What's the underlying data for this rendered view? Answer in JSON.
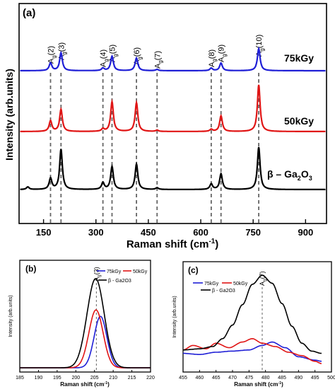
{
  "chart_data": [
    {
      "panel": "(a)",
      "type": "line",
      "xlabel_main": "Raman shift (cm",
      "xlabel_sup": "-1",
      "xlabel_end": ")",
      "ylabel": "Intensity (arb.units)",
      "xlim": [
        80,
        960
      ],
      "xticks": [
        150,
        300,
        450,
        600,
        750,
        900
      ],
      "grid": false,
      "peak_labels": [
        "(2)",
        "(3)",
        "(4)",
        "(5)",
        "(6)",
        "(7)",
        "(8)",
        "(9)",
        "(10)"
      ],
      "peak_label_base": "A",
      "peak_label_sub": "g",
      "peak_positions": [
        170,
        200,
        320,
        346,
        416,
        475,
        630,
        658,
        766
      ],
      "series": [
        {
          "name": "75kGy",
          "color": "#1f1fd6",
          "peaks": [
            [
              170,
              0.18
            ],
            [
              200,
              0.42
            ],
            [
              320,
              0.06
            ],
            [
              346,
              0.34
            ],
            [
              416,
              0.3
            ],
            [
              475,
              0.03
            ],
            [
              630,
              0.06
            ],
            [
              658,
              0.18
            ],
            [
              766,
              0.52
            ]
          ]
        },
        {
          "name": "50kGy",
          "color": "#e01515",
          "peaks": [
            [
              170,
              0.25
            ],
            [
              200,
              0.52
            ],
            [
              320,
              0.06
            ],
            [
              346,
              0.7
            ],
            [
              416,
              0.68
            ],
            [
              475,
              0.03
            ],
            [
              630,
              0.05
            ],
            [
              658,
              0.37
            ],
            [
              766,
              1.1
            ]
          ]
        },
        {
          "name": "Ga",
          "color": "#000000",
          "peaks": [
            [
              105,
              0.06
            ],
            [
              170,
              0.26
            ],
            [
              200,
              0.95
            ],
            [
              320,
              0.16
            ],
            [
              346,
              0.54
            ],
            [
              416,
              0.6
            ],
            [
              475,
              0.04
            ],
            [
              630,
              0.13
            ],
            [
              658,
              0.37
            ],
            [
              766,
              1.0
            ]
          ]
        }
      ],
      "legend_labels": {
        "s75": "75kGy",
        "s50": "50kGy",
        "ga_prefix": "β – Ga",
        "ga_sub1": "2",
        "ga_mid": "O",
        "ga_sub2": "3"
      }
    },
    {
      "panel": "(b)",
      "type": "line",
      "xlabel_main": "Raman shift (cm",
      "xlabel_sup": "-1",
      "xlabel_end": ")",
      "ylabel": "Intensity (arb.units)",
      "xlim": [
        185,
        220
      ],
      "xticks": [
        185,
        190,
        195,
        200,
        205,
        210,
        215,
        220
      ],
      "peak_label": "(3)",
      "peak_position": 205.5,
      "legend": [
        "75kGy",
        "50kGy",
        "β - Ga2O3"
      ],
      "series": [
        {
          "name": "75kGy",
          "color": "#1f1fd6",
          "center": 206.6,
          "height": 0.56,
          "width": 1.7
        },
        {
          "name": "50kGy",
          "color": "#e01515",
          "center": 205.4,
          "height": 0.63,
          "width": 1.9
        },
        {
          "name": "β - Ga2O3",
          "color": "#000000",
          "center": 205.3,
          "height": 0.97,
          "width": 2.3
        }
      ]
    },
    {
      "panel": "(c)",
      "type": "line",
      "xlabel_main": "Raman shift (cm",
      "xlabel_sup": "-1",
      "xlabel_end": ")",
      "ylabel": "Intensity (arb.units)",
      "xlim": [
        455,
        500
      ],
      "xticks": [
        455,
        460,
        465,
        470,
        475,
        480,
        485,
        490,
        495,
        500
      ],
      "peak_label": "(7)",
      "peak_position": 479,
      "legend": [
        "75kGy",
        "50kGy",
        "β - Ga2O3"
      ],
      "series": [
        {
          "name": "75kGy",
          "color": "#1f1fd6",
          "points": [
            [
              455,
              0.14
            ],
            [
              460,
              0.13
            ],
            [
              465,
              0.15
            ],
            [
              470,
              0.16
            ],
            [
              475,
              0.17
            ],
            [
              479,
              0.21
            ],
            [
              482,
              0.24
            ],
            [
              486,
              0.19
            ],
            [
              490,
              0.11
            ],
            [
              495,
              0.08
            ],
            [
              497,
              0.07
            ]
          ]
        },
        {
          "name": "50kGy",
          "color": "#e01515",
          "points": [
            [
              455,
              0.17
            ],
            [
              458,
              0.21
            ],
            [
              462,
              0.18
            ],
            [
              465,
              0.23
            ],
            [
              469,
              0.19
            ],
            [
              473,
              0.24
            ],
            [
              476,
              0.27
            ],
            [
              479,
              0.23
            ],
            [
              483,
              0.2
            ],
            [
              487,
              0.15
            ],
            [
              491,
              0.12
            ],
            [
              495,
              0.07
            ],
            [
              497,
              0.05
            ]
          ]
        },
        {
          "name": "β - Ga2O3",
          "color": "#000000",
          "points": [
            [
              455,
              0.17
            ],
            [
              460,
              0.18
            ],
            [
              464,
              0.2
            ],
            [
              467,
              0.27
            ],
            [
              470,
              0.39
            ],
            [
              473,
              0.57
            ],
            [
              476,
              0.75
            ],
            [
              479,
              0.83
            ],
            [
              482,
              0.76
            ],
            [
              485,
              0.58
            ],
            [
              488,
              0.38
            ],
            [
              491,
              0.23
            ],
            [
              494,
              0.16
            ],
            [
              497,
              0.14
            ]
          ]
        }
      ]
    }
  ]
}
